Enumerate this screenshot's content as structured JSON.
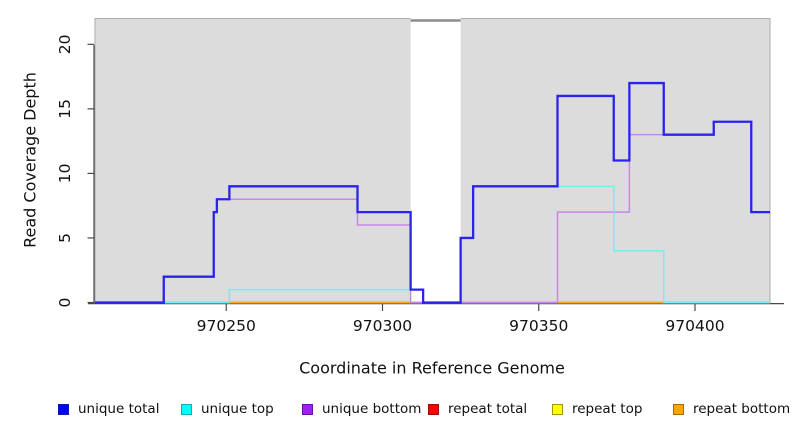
{
  "chart_data": {
    "type": "line",
    "subtype": "step-after-coverage",
    "title": "",
    "xlabel": "Coordinate in Reference Genome",
    "ylabel": "Read Coverage Depth",
    "x_axis": {
      "range": [
        970208,
        970424
      ],
      "ticks": [
        970250,
        970300,
        970350,
        970400
      ]
    },
    "y_axis": {
      "range": [
        0,
        22
      ],
      "ticks": [
        0,
        5,
        10,
        15,
        20
      ]
    },
    "plot_bg": "#DCDCDC",
    "gap_band": {
      "x_from": 970309,
      "x_to": 970325,
      "color": "#FFFFFF"
    },
    "grid": "off",
    "legend_position": "bottom",
    "series": [
      {
        "name": "repeat total",
        "line_color": "#D94F6B",
        "line_width": 1.4,
        "points": [
          [
            970208,
            0
          ]
        ]
      },
      {
        "name": "repeat top",
        "line_color": "#EFEF30",
        "line_width": 1.4,
        "points": [
          [
            970208,
            0
          ]
        ]
      },
      {
        "name": "repeat bottom",
        "line_color": "#FFA51E",
        "line_width": 1.7,
        "points": [
          [
            970208,
            0
          ]
        ]
      },
      {
        "name": "unique bottom",
        "line_color": "#C687E6",
        "line_width": 1.5,
        "points": [
          [
            970208,
            0
          ],
          [
            970230,
            2
          ],
          [
            970246,
            7
          ],
          [
            970247,
            8
          ],
          [
            970292,
            6
          ],
          [
            970309,
            0
          ],
          [
            970356,
            7
          ],
          [
            970379,
            13
          ],
          [
            970406,
            14
          ],
          [
            970418,
            7
          ]
        ]
      },
      {
        "name": "unique top",
        "line_color": "#74EDED",
        "line_width": 1.5,
        "points": [
          [
            970208,
            0
          ],
          [
            970251,
            1
          ],
          [
            970313,
            0
          ],
          [
            970325,
            5
          ],
          [
            970329,
            9
          ],
          [
            970374,
            4
          ],
          [
            970390,
            0
          ]
        ]
      },
      {
        "name": "unique total",
        "line_color": "#2B24E8",
        "line_width": 2.3,
        "points": [
          [
            970208,
            0
          ],
          [
            970230,
            2
          ],
          [
            970246,
            7
          ],
          [
            970247,
            8
          ],
          [
            970251,
            9
          ],
          [
            970292,
            7
          ],
          [
            970309,
            1
          ],
          [
            970313,
            0
          ],
          [
            970325,
            5
          ],
          [
            970329,
            9
          ],
          [
            970356,
            16
          ],
          [
            970374,
            11
          ],
          [
            970379,
            17
          ],
          [
            970390,
            13
          ],
          [
            970406,
            14
          ],
          [
            970418,
            7
          ]
        ]
      }
    ],
    "legend": [
      {
        "label": "unique total",
        "swatch": "#0000FF",
        "swatch_border": "#1515B0"
      },
      {
        "label": "unique top",
        "swatch": "#00FFFF",
        "swatch_border": "#12AFAF"
      },
      {
        "label": "unique bottom",
        "swatch": "#A020F0",
        "swatch_border": "#6A11A8"
      },
      {
        "label": "repeat total",
        "swatch": "#FF0000",
        "swatch_border": "#A01010"
      },
      {
        "label": "repeat top",
        "swatch": "#FFFF00",
        "swatch_border": "#9C9C00"
      },
      {
        "label": "repeat bottom",
        "swatch": "#FFA500",
        "swatch_border": "#A86A00"
      }
    ]
  }
}
